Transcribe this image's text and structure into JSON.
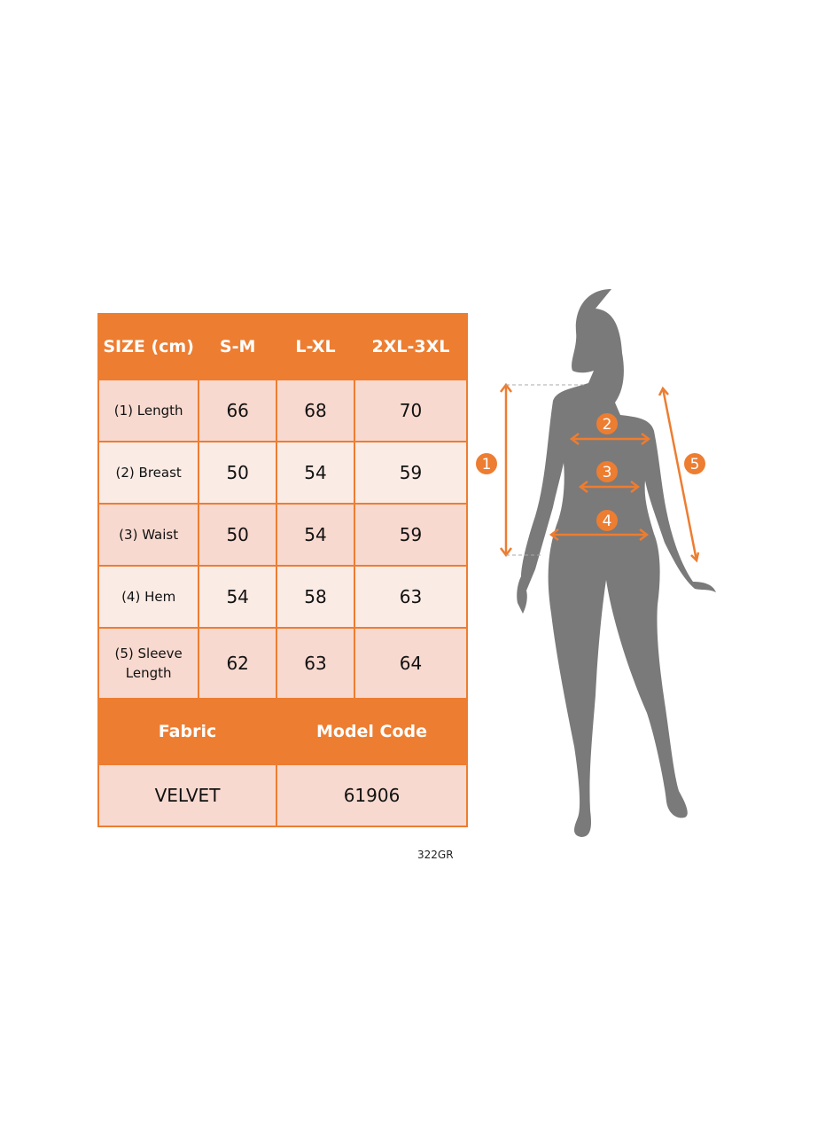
{
  "table": {
    "headers": [
      "SIZE (cm)",
      "S-M",
      "L-XL",
      "2XL-3XL"
    ],
    "rows": [
      {
        "label": "(1) Length",
        "values": [
          "66",
          "68",
          "70"
        ]
      },
      {
        "label": "(2) Breast",
        "values": [
          "50",
          "54",
          "59"
        ]
      },
      {
        "label": "(3) Waist",
        "values": [
          "50",
          "54",
          "59"
        ]
      },
      {
        "label": "(4) Hem",
        "values": [
          "54",
          "58",
          "63"
        ]
      },
      {
        "label": "(5) Sleeve Length",
        "values": [
          "62",
          "63",
          "64"
        ]
      }
    ],
    "fabric_label": "Fabric",
    "model_code_label": "Model Code",
    "fabric": "VELVET",
    "model_code": "61906"
  },
  "code": "322GR",
  "figure": {
    "markers": [
      "1",
      "2",
      "3",
      "4",
      "5"
    ]
  },
  "colors": {
    "accent": "#ed7d31",
    "row_dark": "#f8d9cf",
    "row_light": "#fbebe5",
    "silhouette": "#7a7a7a"
  }
}
